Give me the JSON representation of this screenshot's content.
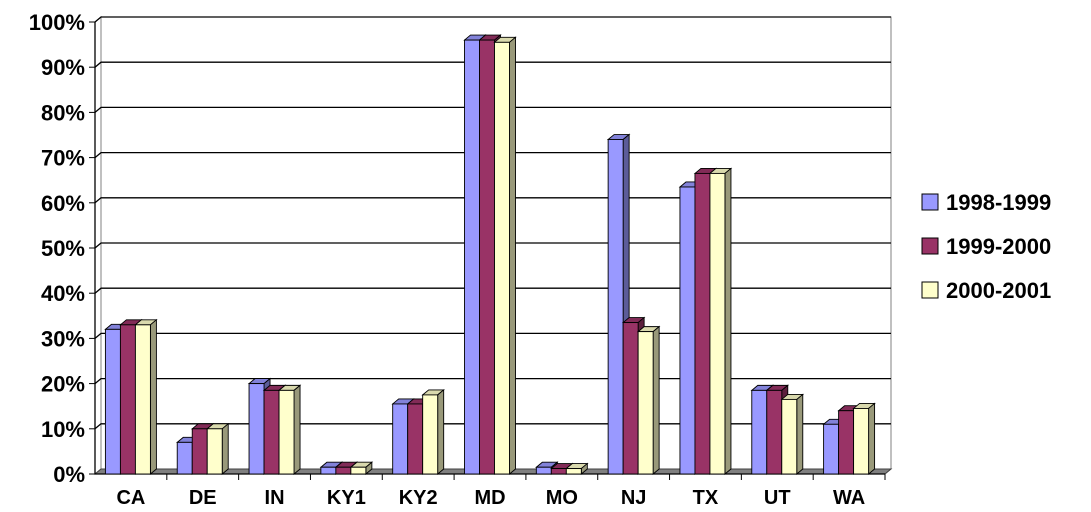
{
  "chart_data": {
    "type": "bar",
    "title": "",
    "xlabel": "",
    "ylabel": "",
    "categories": [
      "CA",
      "DE",
      "IN",
      "KY1",
      "KY2",
      "MD",
      "MO",
      "NJ",
      "TX",
      "UT",
      "WA"
    ],
    "series": [
      {
        "name": "1998-1999",
        "color": "#9999ff",
        "values": [
          32,
          7,
          20,
          1.5,
          15.5,
          96,
          1.5,
          74,
          63.5,
          18.5,
          11
        ]
      },
      {
        "name": "1999-2000",
        "color": "#993366",
        "values": [
          33,
          10,
          18.5,
          1.5,
          15.5,
          96,
          1.2,
          33.5,
          66.5,
          18.5,
          14
        ]
      },
      {
        "name": "2000-2001",
        "color": "#ffffcc",
        "values": [
          33,
          10,
          18.5,
          1.5,
          17.5,
          95.5,
          1.2,
          31.5,
          66.5,
          16.5,
          14.5
        ]
      }
    ],
    "ylim": [
      0,
      100
    ],
    "yticks": [
      "0%",
      "10%",
      "20%",
      "30%",
      "40%",
      "50%",
      "60%",
      "70%",
      "80%",
      "90%",
      "100%"
    ],
    "grid": true,
    "legend": "right",
    "style": "3d-clustered-column"
  }
}
